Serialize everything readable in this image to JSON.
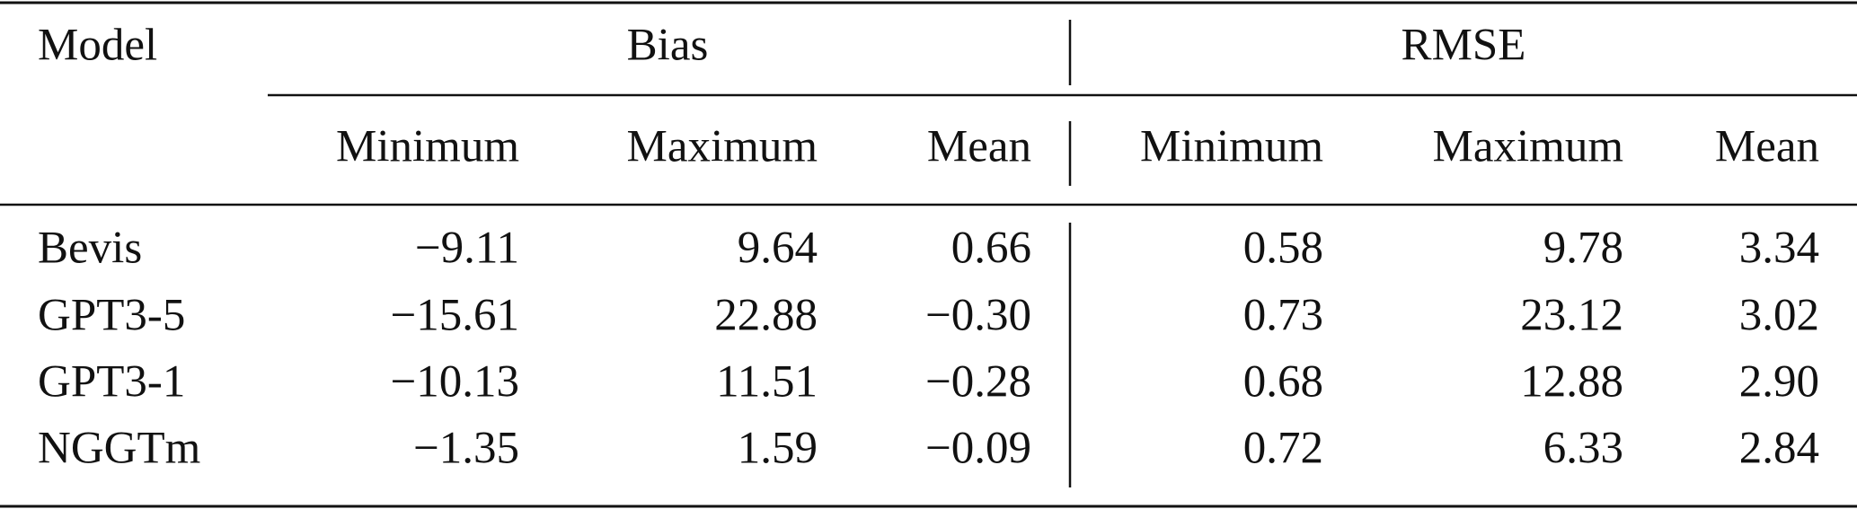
{
  "table": {
    "header": {
      "model": "Model",
      "groups": [
        "Bias",
        "RMSE"
      ],
      "columns": [
        "Minimum",
        "Maximum",
        "Mean",
        "Minimum",
        "Maximum",
        "Mean"
      ]
    },
    "rows": [
      [
        "Bevis",
        "−9.11",
        "9.64",
        "0.66",
        "0.58",
        "9.78",
        "3.34"
      ],
      [
        "GPT3-5",
        "−15.61",
        "22.88",
        "−0.30",
        "0.73",
        "23.12",
        "3.02"
      ],
      [
        "GPT3-1",
        "−10.13",
        "11.51",
        "−0.28",
        "0.68",
        "12.88",
        "2.90"
      ],
      [
        "NGGTm",
        "−1.35",
        "1.59",
        "−0.09",
        "0.72",
        "6.33",
        "2.84"
      ]
    ]
  }
}
